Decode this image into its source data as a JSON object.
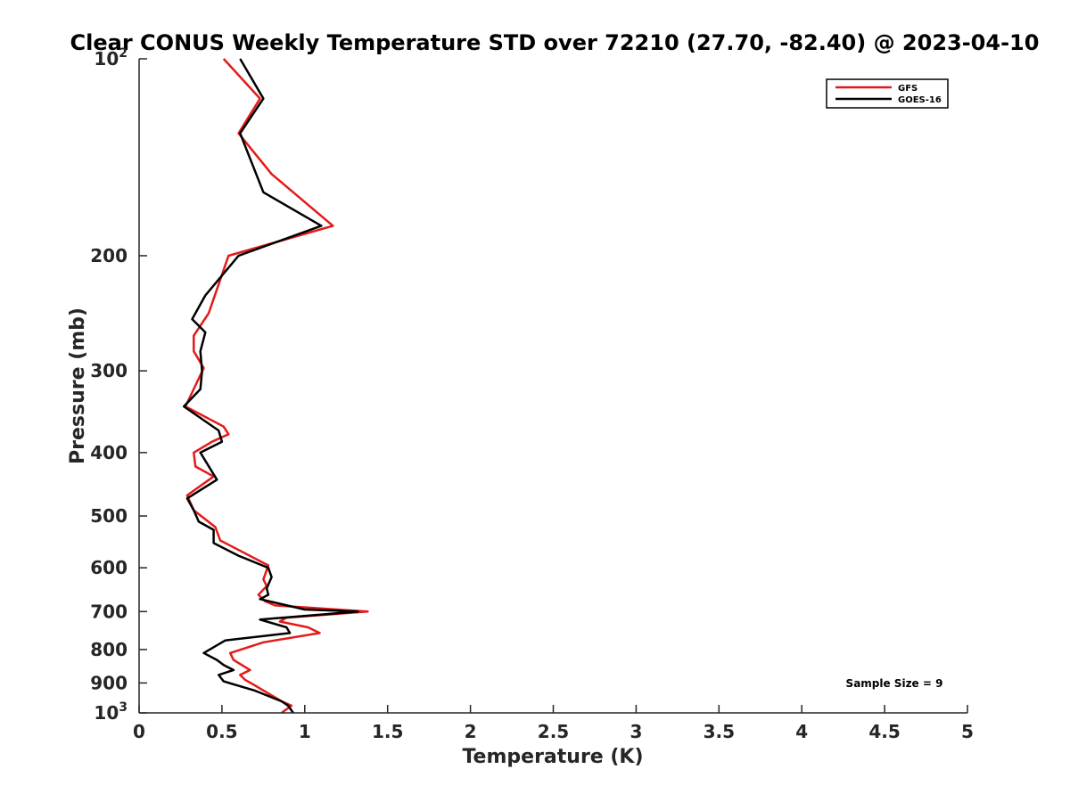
{
  "chart_data": {
    "type": "line",
    "title": "Clear CONUS Weekly Temperature STD over 72210 (27.70, -82.40) @ 2023-04-10",
    "xlabel": "Temperature (K)",
    "ylabel": "Pressure (mb)",
    "xlim": [
      0,
      5
    ],
    "ylim": [
      100,
      1000
    ],
    "y_scale": "log",
    "y_reversed": true,
    "grid": false,
    "legend_position": "top-right",
    "x_ticks": [
      0,
      0.5,
      1,
      1.5,
      2,
      2.5,
      3,
      3.5,
      4,
      4.5,
      5
    ],
    "x_tick_labels": [
      "0",
      "0.5",
      "1",
      "1.5",
      "2",
      "2.5",
      "3",
      "3.5",
      "4",
      "4.5",
      "5"
    ],
    "y_ticks": [
      {
        "value": 100,
        "base": "10",
        "exp": "2"
      },
      {
        "value": 200,
        "label": "200"
      },
      {
        "value": 300,
        "label": "300"
      },
      {
        "value": 400,
        "label": "400"
      },
      {
        "value": 500,
        "label": "500"
      },
      {
        "value": 600,
        "label": "600"
      },
      {
        "value": 700,
        "label": "700"
      },
      {
        "value": 800,
        "label": "800"
      },
      {
        "value": 900,
        "label": "900"
      },
      {
        "value": 1000,
        "base": "10",
        "exp": "3"
      }
    ],
    "series": [
      {
        "name": "GFS",
        "color": "#e41a1a",
        "points": [
          [
            0.51,
            100
          ],
          [
            0.73,
            115
          ],
          [
            0.6,
            130
          ],
          [
            0.8,
            150
          ],
          [
            1.17,
            180
          ],
          [
            0.54,
            200
          ],
          [
            0.42,
            245
          ],
          [
            0.33,
            265
          ],
          [
            0.33,
            280
          ],
          [
            0.39,
            297
          ],
          [
            0.28,
            340
          ],
          [
            0.51,
            365
          ],
          [
            0.54,
            375
          ],
          [
            0.44,
            385
          ],
          [
            0.33,
            400
          ],
          [
            0.34,
            420
          ],
          [
            0.45,
            435
          ],
          [
            0.29,
            465
          ],
          [
            0.33,
            490
          ],
          [
            0.46,
            520
          ],
          [
            0.49,
            545
          ],
          [
            0.58,
            560
          ],
          [
            0.78,
            595
          ],
          [
            0.75,
            625
          ],
          [
            0.77,
            640
          ],
          [
            0.72,
            660
          ],
          [
            0.76,
            675
          ],
          [
            0.82,
            685
          ],
          [
            1.38,
            700
          ],
          [
            0.89,
            715
          ],
          [
            0.85,
            725
          ],
          [
            1.02,
            740
          ],
          [
            1.09,
            755
          ],
          [
            0.75,
            780
          ],
          [
            0.55,
            810
          ],
          [
            0.57,
            830
          ],
          [
            0.67,
            860
          ],
          [
            0.61,
            875
          ],
          [
            0.64,
            890
          ],
          [
            0.69,
            905
          ],
          [
            0.86,
            960
          ],
          [
            0.92,
            975
          ],
          [
            0.86,
            1000
          ]
        ]
      },
      {
        "name": "GOES-16",
        "color": "#000000",
        "points": [
          [
            0.61,
            100
          ],
          [
            0.75,
            115
          ],
          [
            0.61,
            130
          ],
          [
            0.75,
            160
          ],
          [
            1.1,
            180
          ],
          [
            0.6,
            200
          ],
          [
            0.4,
            230
          ],
          [
            0.32,
            250
          ],
          [
            0.4,
            262
          ],
          [
            0.37,
            280
          ],
          [
            0.38,
            300
          ],
          [
            0.37,
            320
          ],
          [
            0.27,
            340
          ],
          [
            0.48,
            370
          ],
          [
            0.5,
            385
          ],
          [
            0.37,
            400
          ],
          [
            0.47,
            440
          ],
          [
            0.29,
            470
          ],
          [
            0.33,
            490
          ],
          [
            0.36,
            510
          ],
          [
            0.45,
            525
          ],
          [
            0.45,
            550
          ],
          [
            0.6,
            575
          ],
          [
            0.78,
            600
          ],
          [
            0.8,
            620
          ],
          [
            0.77,
            645
          ],
          [
            0.78,
            660
          ],
          [
            0.73,
            670
          ],
          [
            1.0,
            695
          ],
          [
            1.32,
            700
          ],
          [
            0.73,
            720
          ],
          [
            0.89,
            740
          ],
          [
            0.91,
            755
          ],
          [
            0.52,
            775
          ],
          [
            0.39,
            810
          ],
          [
            0.47,
            830
          ],
          [
            0.51,
            845
          ],
          [
            0.57,
            860
          ],
          [
            0.48,
            875
          ],
          [
            0.51,
            895
          ],
          [
            0.7,
            925
          ],
          [
            0.86,
            960
          ],
          [
            0.9,
            975
          ],
          [
            0.93,
            1000
          ]
        ]
      }
    ],
    "annotation": "Sample Size = 9"
  }
}
